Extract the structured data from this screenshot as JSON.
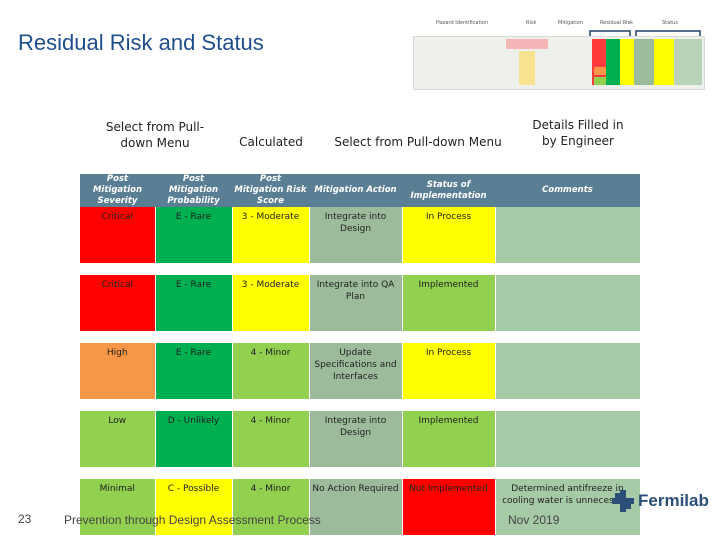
{
  "slide": {
    "title": "Residual Risk and Status",
    "page_number": "23",
    "footer": "Prevention through Design Assessment Process",
    "date": "Nov 2019",
    "brand": "Fermilab"
  },
  "thumbnail_headers": [
    "Hazard Identification",
    "Risk",
    "Mitigation",
    "Residual Risk",
    "Status"
  ],
  "annotations": {
    "select_severity": "Select from Pull-down Menu",
    "calculated": "Calculated",
    "select_action": "Select from Pull-down Menu",
    "details": "Details Filled in by Engineer"
  },
  "table": {
    "headers": [
      "Post Mitigation Severity",
      "Post Mitigation Probability",
      "Post Mitigation Risk Score",
      "Mitigation Action",
      "Status of Implementation",
      "Comments"
    ],
    "rows": [
      {
        "severity": "Critical",
        "probability": "E - Rare",
        "score": "3 - Moderate",
        "action": "Integrate into Design",
        "status": "In Process",
        "comment": ""
      },
      {
        "severity": "Critical",
        "probability": "E - Rare",
        "score": "3 - Moderate",
        "action": "Integrate into QA Plan",
        "status": "Implemented",
        "comment": ""
      },
      {
        "severity": "High",
        "probability": "E - Rare",
        "score": "4 - Minor",
        "action": "Update Specifications and Interfaces",
        "status": "In Process",
        "comment": ""
      },
      {
        "severity": "Low",
        "probability": "D - Unlikely",
        "score": "4 - Minor",
        "action": "Integrate into Design",
        "status": "Implemented",
        "comment": ""
      },
      {
        "severity": "Minimal",
        "probability": "C - Possible",
        "score": "4 - Minor",
        "action": "No Action Required",
        "status": "Not Implemented",
        "comment": "Determined antifreeze in cooling water is unnecessary"
      }
    ]
  },
  "colors": {
    "title": "#1f4e8c",
    "header_bg": "#5a7f94",
    "red": "#ff0000",
    "green": "#00b050",
    "yellow": "#ffff00",
    "orange": "#f79646",
    "light_green": "#92d050",
    "gray_green": "#9bbb9b"
  }
}
